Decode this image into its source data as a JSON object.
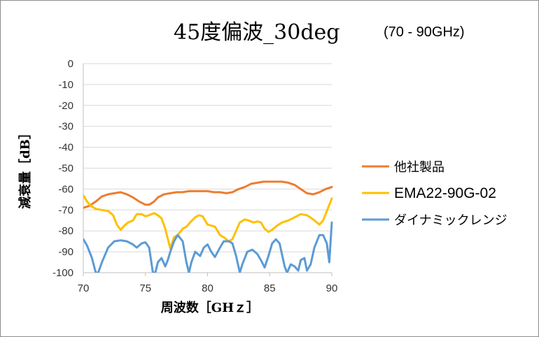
{
  "chart_data": {
    "type": "line",
    "title": "45度偏波_30deg",
    "subtitle": "(70 - 90GHz)",
    "xlabel": "周波数［GHｚ］",
    "ylabel": "減衰量［dB］",
    "xlim": [
      70,
      90
    ],
    "ylim": [
      -100,
      0
    ],
    "x_ticks": [
      "70",
      "75",
      "80",
      "85",
      "90"
    ],
    "y_ticks": [
      "0",
      "-10",
      "-20",
      "-30",
      "-40",
      "-50",
      "-60",
      "-70",
      "-80",
      "-90",
      "-100"
    ],
    "grid": "horizontal",
    "legend_position": "right",
    "series": [
      {
        "name": "他社製品",
        "color": "#ED7D31",
        "points": [
          [
            70,
            -69
          ],
          [
            70.5,
            -68
          ],
          [
            71,
            -66
          ],
          [
            71.5,
            -63.5
          ],
          [
            72,
            -62.5
          ],
          [
            72.5,
            -62
          ],
          [
            73,
            -61.5
          ],
          [
            73.5,
            -62.5
          ],
          [
            74,
            -64
          ],
          [
            74.5,
            -66
          ],
          [
            75,
            -67.5
          ],
          [
            75.3,
            -67.5
          ],
          [
            75.7,
            -66
          ],
          [
            76,
            -64
          ],
          [
            76.5,
            -62.5
          ],
          [
            77,
            -62
          ],
          [
            77.5,
            -61.5
          ],
          [
            78,
            -61.5
          ],
          [
            78.5,
            -61
          ],
          [
            79,
            -61
          ],
          [
            79.5,
            -61
          ],
          [
            80,
            -61
          ],
          [
            80.5,
            -61.5
          ],
          [
            81,
            -61.5
          ],
          [
            81.5,
            -62
          ],
          [
            82,
            -61.5
          ],
          [
            82.5,
            -60
          ],
          [
            83,
            -59
          ],
          [
            83.5,
            -57.5
          ],
          [
            84,
            -57
          ],
          [
            84.5,
            -56.5
          ],
          [
            85,
            -56.5
          ],
          [
            85.5,
            -56.5
          ],
          [
            86,
            -56.5
          ],
          [
            86.5,
            -57
          ],
          [
            87,
            -58
          ],
          [
            87.5,
            -60
          ],
          [
            88,
            -62
          ],
          [
            88.5,
            -62.5
          ],
          [
            89,
            -61.5
          ],
          [
            89.5,
            -60
          ],
          [
            90,
            -59
          ]
        ]
      },
      {
        "name": "EMA22-90G-02",
        "color": "#FFC000",
        "points": [
          [
            70,
            -63
          ],
          [
            70.3,
            -66
          ],
          [
            70.6,
            -68
          ],
          [
            71,
            -69.5
          ],
          [
            71.5,
            -70
          ],
          [
            72,
            -70.5
          ],
          [
            72.4,
            -72.5
          ],
          [
            72.7,
            -77
          ],
          [
            73,
            -79.5
          ],
          [
            73.3,
            -77.5
          ],
          [
            73.6,
            -76
          ],
          [
            74,
            -75
          ],
          [
            74.3,
            -72
          ],
          [
            74.7,
            -72
          ],
          [
            75,
            -73
          ],
          [
            75.3,
            -72.5
          ],
          [
            75.7,
            -71.5
          ],
          [
            76,
            -72.5
          ],
          [
            76.3,
            -74
          ],
          [
            76.6,
            -79
          ],
          [
            77,
            -88.5
          ],
          [
            77.3,
            -83
          ],
          [
            77.6,
            -82
          ],
          [
            78,
            -79
          ],
          [
            78.3,
            -78
          ],
          [
            78.6,
            -76
          ],
          [
            79,
            -73.5
          ],
          [
            79.3,
            -72.5
          ],
          [
            79.6,
            -73
          ],
          [
            80,
            -77
          ],
          [
            80.3,
            -77.5
          ],
          [
            80.6,
            -78
          ],
          [
            81,
            -82
          ],
          [
            81.4,
            -83.5
          ],
          [
            81.7,
            -85
          ],
          [
            82,
            -84
          ],
          [
            82.3,
            -80
          ],
          [
            82.6,
            -76
          ],
          [
            83,
            -74.5
          ],
          [
            83.3,
            -75
          ],
          [
            83.7,
            -76
          ],
          [
            84,
            -75.5
          ],
          [
            84.3,
            -76
          ],
          [
            84.6,
            -79
          ],
          [
            84.9,
            -80.5
          ],
          [
            85.2,
            -79.5
          ],
          [
            85.6,
            -77.5
          ],
          [
            86,
            -76
          ],
          [
            86.5,
            -75
          ],
          [
            87,
            -73.5
          ],
          [
            87.5,
            -72
          ],
          [
            88,
            -72.5
          ],
          [
            88.5,
            -74.5
          ],
          [
            89,
            -77
          ],
          [
            89.3,
            -75
          ],
          [
            89.7,
            -69
          ],
          [
            90,
            -64.5
          ]
        ]
      },
      {
        "name": "ダイナミックレンジ",
        "color": "#5B9BD5",
        "points": [
          [
            70,
            -84
          ],
          [
            70.3,
            -87
          ],
          [
            70.7,
            -93
          ],
          [
            71,
            -100
          ],
          [
            71.2,
            -100
          ],
          [
            71.5,
            -95
          ],
          [
            72,
            -88
          ],
          [
            72.5,
            -85
          ],
          [
            73,
            -84.5
          ],
          [
            73.5,
            -85
          ],
          [
            74,
            -86.5
          ],
          [
            74.3,
            -88
          ],
          [
            74.7,
            -86
          ],
          [
            75,
            -85.5
          ],
          [
            75.3,
            -88
          ],
          [
            75.6,
            -100
          ],
          [
            75.8,
            -100
          ],
          [
            76,
            -95
          ],
          [
            76.3,
            -93
          ],
          [
            76.6,
            -97
          ],
          [
            76.8,
            -94
          ],
          [
            77,
            -90
          ],
          [
            77.3,
            -85
          ],
          [
            77.6,
            -82
          ],
          [
            78,
            -85
          ],
          [
            78.3,
            -95
          ],
          [
            78.5,
            -100
          ],
          [
            78.7,
            -95
          ],
          [
            79,
            -90
          ],
          [
            79.4,
            -92
          ],
          [
            79.7,
            -88
          ],
          [
            80,
            -86.5
          ],
          [
            80.3,
            -90
          ],
          [
            80.6,
            -92.5
          ],
          [
            81,
            -88
          ],
          [
            81.3,
            -85
          ],
          [
            81.7,
            -85
          ],
          [
            82,
            -86
          ],
          [
            82.3,
            -92
          ],
          [
            82.6,
            -100
          ],
          [
            82.8,
            -96
          ],
          [
            83.2,
            -90
          ],
          [
            83.6,
            -89
          ],
          [
            84,
            -91
          ],
          [
            84.3,
            -94
          ],
          [
            84.6,
            -97.5
          ],
          [
            84.9,
            -92
          ],
          [
            85.2,
            -86
          ],
          [
            85.5,
            -84
          ],
          [
            85.8,
            -86
          ],
          [
            86.2,
            -97
          ],
          [
            86.4,
            -100
          ],
          [
            86.7,
            -96
          ],
          [
            87,
            -97
          ],
          [
            87.3,
            -99
          ],
          [
            87.5,
            -94
          ],
          [
            87.8,
            -93
          ],
          [
            88,
            -99
          ],
          [
            88.3,
            -96
          ],
          [
            88.6,
            -88
          ],
          [
            89,
            -82
          ],
          [
            89.3,
            -82
          ],
          [
            89.6,
            -86
          ],
          [
            89.8,
            -95
          ],
          [
            90,
            -76
          ]
        ]
      }
    ]
  }
}
